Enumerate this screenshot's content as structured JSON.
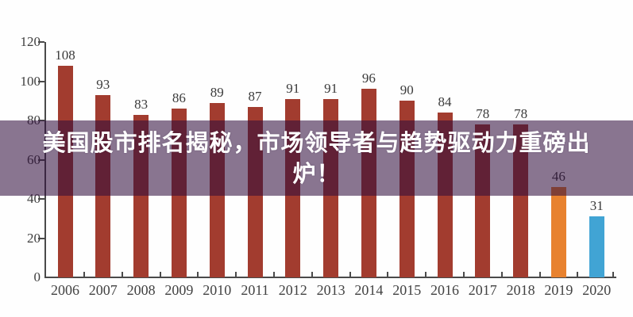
{
  "overlay": {
    "title_line1": "美国股市排名揭秘，市场领导者与趋势驱动力重磅出",
    "title_line2": "炉！",
    "full_title": "美国股市排名揭秘，市场领导者与趋势驱动力重磅出炉！"
  },
  "chart_data": {
    "type": "bar",
    "title": "",
    "xlabel": "",
    "ylabel": "",
    "categories": [
      "2006",
      "2007",
      "2008",
      "2009",
      "2010",
      "2011",
      "2012",
      "2013",
      "2014",
      "2015",
      "2016",
      "2017",
      "2018",
      "2019",
      "2020"
    ],
    "values": [
      108,
      93,
      83,
      86,
      89,
      87,
      91,
      91,
      96,
      90,
      84,
      78,
      78,
      46,
      31
    ],
    "bar_colors": [
      "#A23C2F",
      "#A23C2F",
      "#A23C2F",
      "#A23C2F",
      "#A23C2F",
      "#A23C2F",
      "#A23C2F",
      "#A23C2F",
      "#A23C2F",
      "#A23C2F",
      "#A23C2F",
      "#A23C2F",
      "#A23C2F",
      "#E8822F",
      "#41A4D4"
    ],
    "ylim": [
      0,
      120
    ],
    "yticks": [
      0,
      20,
      40,
      60,
      80,
      100,
      120
    ],
    "grid": false,
    "legend": null,
    "value_labels_shown": true
  },
  "colors": {
    "bar_default": "#A23C2F",
    "bar_2019": "#E8822F",
    "bar_2020": "#41A4D4",
    "axis": "#4a4a4a",
    "tick_label": "#3e3e3e",
    "value_label": "#3b3b3b",
    "overlay_band": "rgba(47,13,60,0.57)",
    "overlay_text": "#ffffff",
    "background": "#fefefe"
  }
}
